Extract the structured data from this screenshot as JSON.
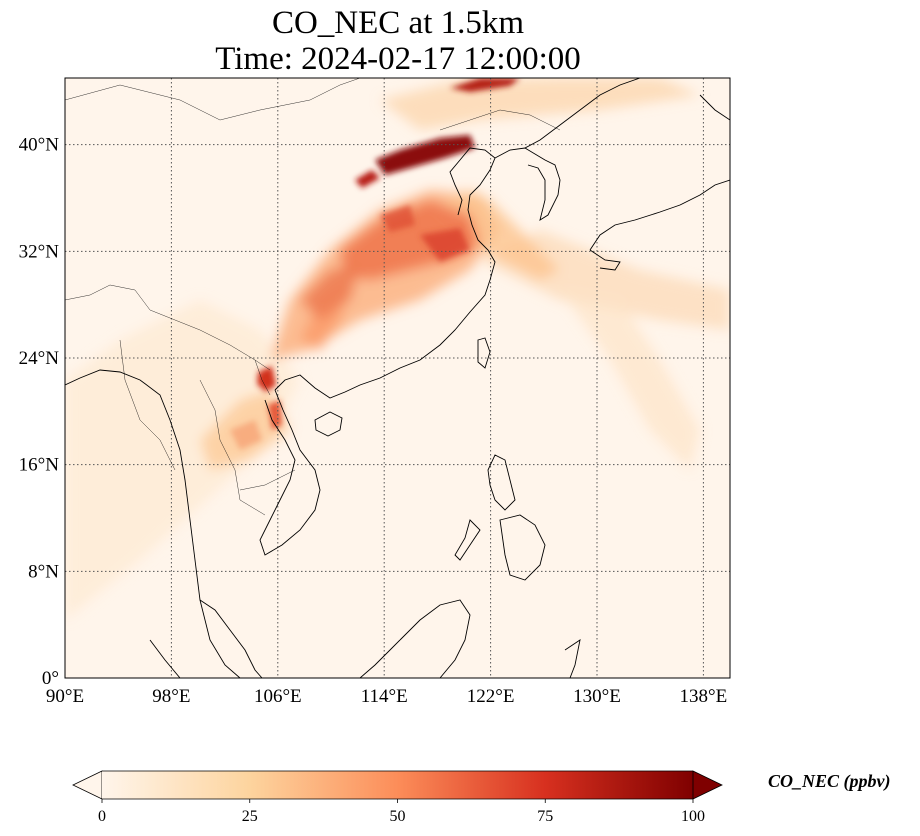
{
  "title_line1": "CO_NEC at 1.5km",
  "title_line2": "Time: 2024-02-17 12:00:00",
  "map": {
    "lon_range": [
      90,
      140
    ],
    "lat_range": [
      0,
      45
    ],
    "lon_ticks": [
      {
        "value": 90,
        "label": "90°E"
      },
      {
        "value": 98,
        "label": "98°E"
      },
      {
        "value": 106,
        "label": "106°E"
      },
      {
        "value": 114,
        "label": "114°E"
      },
      {
        "value": 122,
        "label": "122°E"
      },
      {
        "value": 130,
        "label": "130°E"
      },
      {
        "value": 138,
        "label": "138°E"
      }
    ],
    "lat_ticks": [
      {
        "value": 0,
        "label": "0°"
      },
      {
        "value": 8,
        "label": "8°N"
      },
      {
        "value": 16,
        "label": "16°N"
      },
      {
        "value": 24,
        "label": "24°N"
      },
      {
        "value": 32,
        "label": "32°N"
      },
      {
        "value": 40,
        "label": "40°N"
      }
    ],
    "gridlines": true,
    "colormap": [
      "#fff5eb",
      "#fdd49e",
      "#fc8d59",
      "#d7301f",
      "#7f0000"
    ]
  },
  "colorbar": {
    "label": "CO_NEC (ppbv)",
    "min": 0,
    "max": 100,
    "extend": "both",
    "ticks": [
      {
        "value": 0,
        "label": "0"
      },
      {
        "value": 25,
        "label": "25"
      },
      {
        "value": 50,
        "label": "50"
      },
      {
        "value": 75,
        "label": "75"
      },
      {
        "value": 100,
        "label": "100"
      }
    ]
  }
}
